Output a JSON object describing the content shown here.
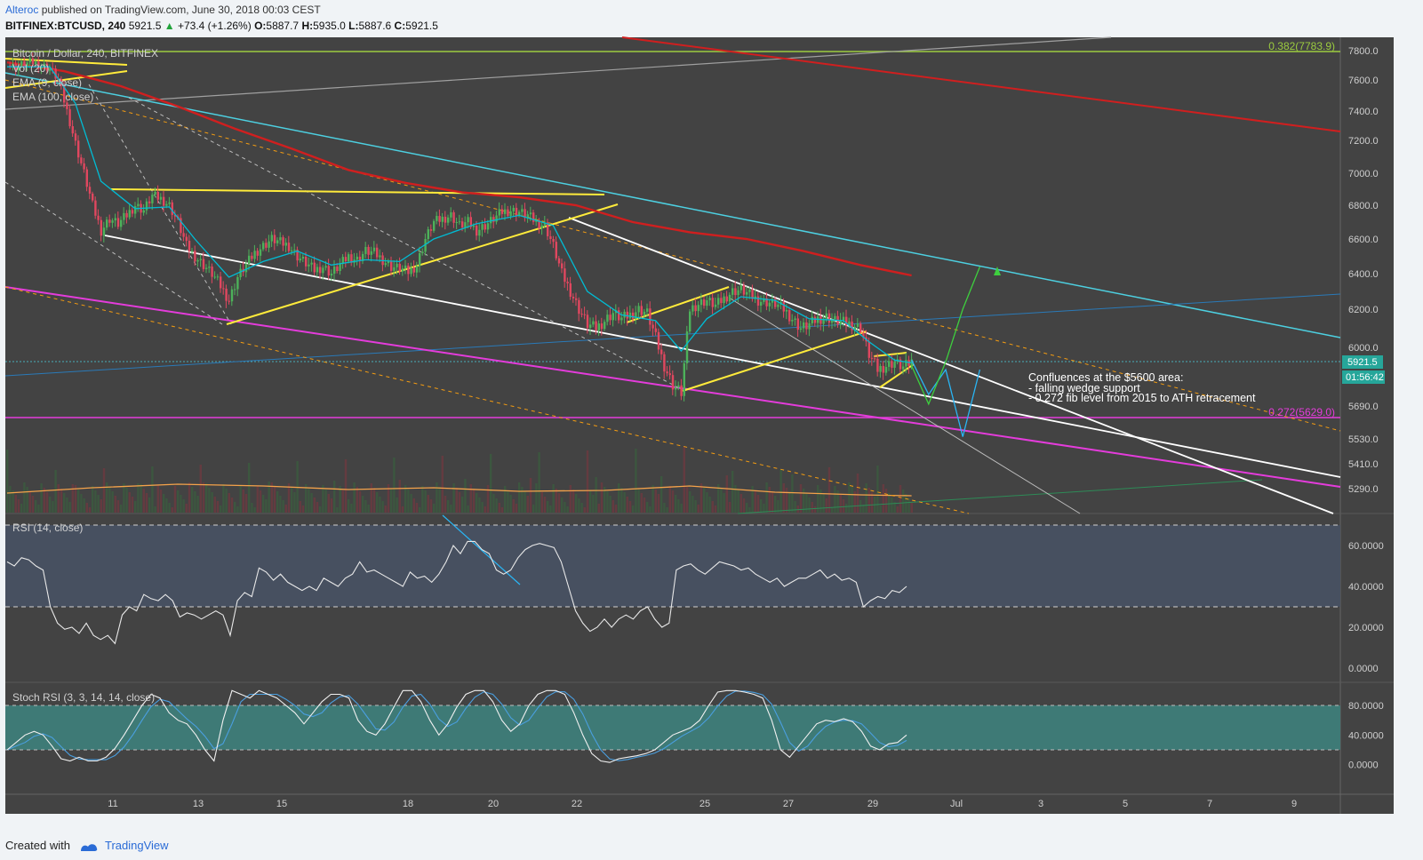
{
  "publish_line": {
    "author": "Alteroc",
    "text": "published on TradingView.com, June 30, 2018 00:03 CEST"
  },
  "ohlc_line": {
    "symbol": "BITFINEX:BTCUSD, 240",
    "last": "5921.5",
    "change": "+73.4 (+1.26%)",
    "o_label": "O:",
    "o": "5887.7",
    "h_label": "H:",
    "h": "5935.0",
    "l_label": "L:",
    "l": "5887.6",
    "c_label": "C:",
    "c": "5921.5"
  },
  "footer": {
    "created_with": "Created with",
    "brand": "TradingView"
  },
  "colors": {
    "bg": "#434343",
    "up": "#4db15a",
    "down": "#e0475f",
    "ema9": "#00bcd4",
    "ema100": "#d01f1f",
    "wedge": "#ffffff",
    "channel": "#ffeb3b",
    "fib_magenta": "#e43cdb",
    "fib_green": "#9ccc3f",
    "cyan_line": "#4dd0e1"
  },
  "chart_data": [
    {
      "type": "candlestick",
      "title": "Bitcoin / Dollar, 240, BITFINEX",
      "legend": [
        "Vol (20)",
        "EMA (9, close)",
        "EMA (100, close)"
      ],
      "x_tick_labels": [
        "11",
        "13",
        "15",
        "18",
        "20",
        "22",
        "25",
        "27",
        "29",
        "Jul",
        "3",
        "5",
        "7",
        "9"
      ],
      "y_tick_labels": [
        "7800.0",
        "7600.0",
        "7400.0",
        "7200.0",
        "7000.0",
        "6800.0",
        "6600.0",
        "6400.0",
        "6200.0",
        "6000.0",
        "5690.0",
        "5530.0",
        "5410.0",
        "5290.0"
      ],
      "ylim": [
        5200,
        7850
      ],
      "price_scale": [
        [
          7800,
          57
        ],
        [
          7600,
          90
        ],
        [
          7400,
          125
        ],
        [
          7200,
          158
        ],
        [
          7000,
          195
        ],
        [
          6800,
          231
        ],
        [
          6600,
          269
        ],
        [
          6400,
          308
        ],
        [
          6200,
          348
        ],
        [
          6000,
          391
        ],
        [
          5921.5,
          407
        ],
        [
          5690,
          457
        ],
        [
          5629,
          470
        ],
        [
          5530,
          494
        ],
        [
          5410,
          522
        ],
        [
          5290,
          550
        ],
        [
          5200,
          572
        ]
      ],
      "last_price_label": "5921.5",
      "countdown_label": "01:56:42",
      "fib_levels": [
        {
          "label": "0.382(7783.9)",
          "value": 7783.9
        },
        {
          "label": "0.272(5629.0)",
          "value": 5629.0
        }
      ],
      "annotation": {
        "title": "Confluences at the $5600 area:",
        "bullets": [
          "- falling wedge support",
          "- 0.272 fib level from 2015 to ATH retracement"
        ]
      },
      "close_path": [
        [
          0,
          7700
        ],
        [
          3,
          7690
        ],
        [
          6,
          7710
        ],
        [
          9,
          7720
        ],
        [
          12,
          7700
        ],
        [
          15,
          7680
        ],
        [
          18,
          7600
        ],
        [
          21,
          7400
        ],
        [
          24,
          7180
        ],
        [
          27,
          7000
        ],
        [
          30,
          6800
        ],
        [
          33,
          6650
        ],
        [
          36,
          6720
        ],
        [
          39,
          6690
        ],
        [
          42,
          6740
        ],
        [
          45,
          6800
        ],
        [
          48,
          6770
        ],
        [
          51,
          6860
        ],
        [
          54,
          6840
        ],
        [
          57,
          6800
        ],
        [
          60,
          6700
        ],
        [
          63,
          6560
        ],
        [
          66,
          6500
        ],
        [
          69,
          6450
        ],
        [
          72,
          6400
        ],
        [
          75,
          6330
        ],
        [
          78,
          6250
        ],
        [
          81,
          6380
        ],
        [
          84,
          6450
        ],
        [
          87,
          6520
        ],
        [
          90,
          6560
        ],
        [
          93,
          6600
        ],
        [
          96,
          6580
        ],
        [
          99,
          6560
        ],
        [
          102,
          6500
        ],
        [
          105,
          6460
        ],
        [
          108,
          6420
        ],
        [
          111,
          6440
        ],
        [
          114,
          6400
        ],
        [
          117,
          6450
        ],
        [
          120,
          6500
        ],
        [
          123,
          6480
        ],
        [
          126,
          6530
        ],
        [
          129,
          6520
        ],
        [
          132,
          6480
        ],
        [
          135,
          6440
        ],
        [
          138,
          6430
        ],
        [
          141,
          6410
        ],
        [
          144,
          6450
        ],
        [
          147,
          6600
        ],
        [
          150,
          6700
        ],
        [
          153,
          6720
        ],
        [
          156,
          6740
        ],
        [
          159,
          6680
        ],
        [
          162,
          6700
        ],
        [
          165,
          6650
        ],
        [
          168,
          6680
        ],
        [
          171,
          6720
        ],
        [
          174,
          6760
        ],
        [
          177,
          6770
        ],
        [
          180,
          6760
        ],
        [
          183,
          6740
        ],
        [
          186,
          6700
        ],
        [
          189,
          6680
        ],
        [
          192,
          6560
        ],
        [
          195,
          6400
        ],
        [
          198,
          6300
        ],
        [
          201,
          6200
        ],
        [
          204,
          6120
        ],
        [
          207,
          6100
        ],
        [
          210,
          6140
        ],
        [
          213,
          6180
        ],
        [
          216,
          6150
        ],
        [
          219,
          6170
        ],
        [
          222,
          6200
        ],
        [
          225,
          6180
        ],
        [
          228,
          6050
        ],
        [
          231,
          5900
        ],
        [
          234,
          5800
        ],
        [
          237,
          5760
        ],
        [
          240,
          6200
        ],
        [
          243,
          6230
        ],
        [
          246,
          6250
        ],
        [
          249,
          6220
        ],
        [
          252,
          6260
        ],
        [
          255,
          6300
        ],
        [
          258,
          6310
        ],
        [
          261,
          6280
        ],
        [
          264,
          6250
        ],
        [
          267,
          6240
        ],
        [
          270,
          6230
        ],
        [
          273,
          6200
        ],
        [
          276,
          6150
        ],
        [
          279,
          6100
        ],
        [
          282,
          6120
        ],
        [
          285,
          6150
        ],
        [
          288,
          6160
        ],
        [
          291,
          6140
        ],
        [
          294,
          6130
        ],
        [
          297,
          6120
        ],
        [
          300,
          6100
        ],
        [
          303,
          5960
        ],
        [
          306,
          5880
        ],
        [
          309,
          5900
        ],
        [
          312,
          5920
        ],
        [
          315,
          5890
        ],
        [
          318,
          5921.5
        ]
      ],
      "ema100_path": [
        [
          0,
          7720
        ],
        [
          20,
          7660
        ],
        [
          40,
          7560
        ],
        [
          60,
          7430
        ],
        [
          80,
          7280
        ],
        [
          100,
          7150
        ],
        [
          120,
          7020
        ],
        [
          140,
          6940
        ],
        [
          160,
          6880
        ],
        [
          180,
          6850
        ],
        [
          200,
          6800
        ],
        [
          220,
          6700
        ],
        [
          240,
          6640
        ],
        [
          260,
          6600
        ],
        [
          280,
          6530
        ],
        [
          300,
          6450
        ],
        [
          318,
          6390
        ]
      ],
      "ema9_path": [
        [
          0,
          7690
        ],
        [
          15,
          7690
        ],
        [
          24,
          7450
        ],
        [
          33,
          6950
        ],
        [
          45,
          6780
        ],
        [
          57,
          6790
        ],
        [
          66,
          6600
        ],
        [
          78,
          6380
        ],
        [
          90,
          6470
        ],
        [
          102,
          6530
        ],
        [
          114,
          6450
        ],
        [
          126,
          6480
        ],
        [
          138,
          6470
        ],
        [
          150,
          6600
        ],
        [
          165,
          6690
        ],
        [
          180,
          6740
        ],
        [
          192,
          6680
        ],
        [
          204,
          6300
        ],
        [
          216,
          6170
        ],
        [
          228,
          6140
        ],
        [
          237,
          5980
        ],
        [
          246,
          6150
        ],
        [
          258,
          6270
        ],
        [
          270,
          6250
        ],
        [
          282,
          6150
        ],
        [
          294,
          6140
        ],
        [
          303,
          6030
        ],
        [
          312,
          5930
        ],
        [
          318,
          5915
        ]
      ],
      "projected_path_cyan": [
        [
          318,
          5930
        ],
        [
          324,
          5750
        ],
        [
          330,
          5880
        ],
        [
          336,
          5540
        ],
        [
          342,
          5880
        ]
      ],
      "projected_path_green": [
        [
          318,
          5900
        ],
        [
          324,
          5700
        ],
        [
          330,
          5920
        ],
        [
          336,
          6200
        ],
        [
          342,
          6440
        ]
      ],
      "volume_ma_path": [
        [
          0,
          12
        ],
        [
          30,
          18
        ],
        [
          60,
          22
        ],
        [
          90,
          20
        ],
        [
          120,
          16
        ],
        [
          150,
          18
        ],
        [
          180,
          14
        ],
        [
          210,
          15
        ],
        [
          240,
          20
        ],
        [
          270,
          13
        ],
        [
          300,
          10
        ],
        [
          318,
          9
        ]
      ]
    },
    {
      "type": "line",
      "title": "RSI (14, close)",
      "y_tick_labels": [
        "60.0000",
        "40.0000",
        "20.0000",
        "0.0000"
      ],
      "bands": [
        70,
        30
      ],
      "ylim": [
        0,
        72
      ],
      "values": [
        52,
        50,
        54,
        53,
        50,
        48,
        30,
        22,
        19,
        20,
        17,
        22,
        16,
        14,
        16,
        12,
        26,
        30,
        28,
        36,
        34,
        33,
        36,
        33,
        25,
        27,
        26,
        24,
        26,
        28,
        26,
        16,
        33,
        37,
        35,
        49,
        47,
        43,
        46,
        42,
        40,
        38,
        40,
        38,
        44,
        42,
        40,
        44,
        46,
        52,
        47,
        48,
        46,
        44,
        42,
        40,
        47,
        44,
        45,
        42,
        46,
        52,
        60,
        56,
        62,
        62,
        58,
        56,
        48,
        46,
        48,
        54,
        58,
        60,
        61,
        60,
        59,
        52,
        40,
        28,
        22,
        18,
        20,
        24,
        20,
        24,
        26,
        24,
        28,
        30,
        24,
        20,
        22,
        48,
        50,
        51,
        48,
        46,
        49,
        52,
        51,
        50,
        48,
        49,
        46,
        44,
        42,
        44,
        40,
        42,
        44,
        44,
        46,
        48,
        44,
        46,
        43,
        44,
        42,
        30,
        33,
        35,
        34,
        38,
        37,
        40
      ]
    },
    {
      "type": "line",
      "title": "Stoch RSI (3, 3, 14, 14, close)",
      "y_tick_labels": [
        "80.0000",
        "40.0000",
        "0.0000"
      ],
      "bands": [
        80,
        20
      ],
      "ylim": [
        -10,
        110
      ],
      "values": [
        20,
        30,
        40,
        45,
        40,
        25,
        8,
        5,
        10,
        5,
        5,
        10,
        22,
        40,
        60,
        80,
        95,
        90,
        70,
        60,
        55,
        40,
        20,
        5,
        60,
        100,
        95,
        90,
        100,
        95,
        90,
        80,
        70,
        55,
        70,
        85,
        95,
        95,
        90,
        60,
        45,
        40,
        55,
        78,
        100,
        100,
        85,
        60,
        40,
        55,
        78,
        95,
        100,
        100,
        85,
        60,
        45,
        55,
        80,
        95,
        100,
        100,
        95,
        70,
        40,
        15,
        5,
        3,
        8,
        10,
        12,
        15,
        20,
        30,
        40,
        45,
        50,
        60,
        80,
        98,
        100,
        100,
        98,
        95,
        90,
        60,
        20,
        10,
        25,
        40,
        55,
        60,
        58,
        62,
        58,
        45,
        25,
        20,
        28,
        30,
        40
      ]
    }
  ]
}
